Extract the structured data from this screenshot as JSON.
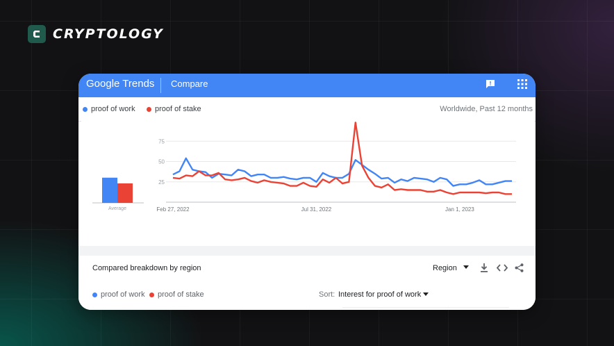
{
  "brand": {
    "icon": "cryptology-logo-icon",
    "letter": "C",
    "name": "CRYPTOLOGY"
  },
  "trends": {
    "logo_text_1": "Google",
    "logo_text_2": "Trends",
    "section": "Compare",
    "icons": {
      "feedback": "feedback-icon",
      "apps": "apps-grid-icon"
    },
    "scope": "Worldwide, Past 12 months",
    "terms": [
      {
        "label": "proof of work",
        "color": "#4285f4"
      },
      {
        "label": "proof of stake",
        "color": "#ea4335"
      }
    ],
    "average_label": "Average",
    "breakdown": {
      "title": "Compared breakdown by region",
      "resolution": "Region",
      "icons": [
        "chevron-down-icon",
        "download-icon",
        "embed-icon",
        "share-icon"
      ]
    },
    "sort": {
      "label": "Sort:",
      "value": "Interest for proof of work"
    }
  },
  "chart_data": {
    "type": "line",
    "y_ticks": [
      25,
      50,
      75
    ],
    "ylim": [
      0,
      100
    ],
    "x_tick_labels": [
      {
        "label": "Feb 27, 2022",
        "index": 0
      },
      {
        "label": "Jul 31, 2022",
        "index": 22
      },
      {
        "label": "Jan 1, 2023",
        "index": 44
      }
    ],
    "grid": true,
    "series": [
      {
        "name": "proof of work",
        "color": "#4285f4",
        "values": [
          34,
          38,
          54,
          40,
          38,
          37,
          30,
          35,
          34,
          33,
          40,
          38,
          32,
          34,
          34,
          30,
          30,
          31,
          29,
          28,
          30,
          30,
          25,
          36,
          32,
          30,
          30,
          35,
          52,
          46,
          40,
          35,
          29,
          30,
          24,
          28,
          26,
          30,
          29,
          28,
          25,
          30,
          28,
          20,
          22,
          22,
          24,
          27,
          22,
          22,
          24,
          26,
          26
        ],
        "average": 31
      },
      {
        "name": "proof of stake",
        "color": "#ea4335",
        "values": [
          30,
          29,
          33,
          32,
          38,
          33,
          33,
          36,
          28,
          27,
          28,
          30,
          26,
          24,
          27,
          25,
          24,
          23,
          20,
          20,
          24,
          20,
          19,
          28,
          24,
          30,
          23,
          25,
          98,
          45,
          30,
          20,
          18,
          22,
          15,
          16,
          15,
          15,
          15,
          13,
          13,
          15,
          12,
          10,
          12,
          12,
          12,
          12,
          11,
          12,
          12,
          10,
          10
        ],
        "average": 24
      }
    ]
  }
}
